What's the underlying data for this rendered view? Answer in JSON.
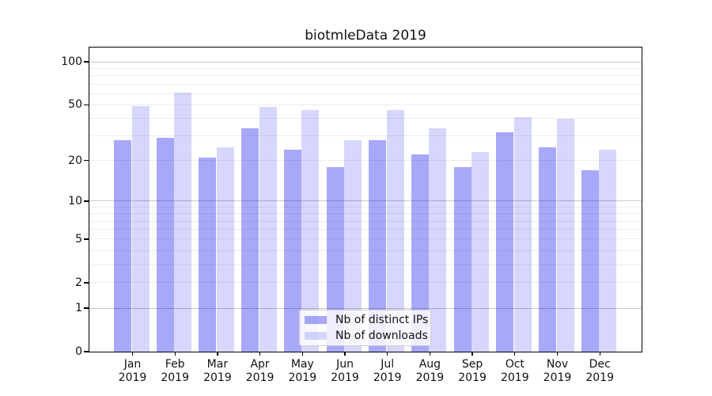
{
  "chart_data": {
    "type": "bar",
    "title": "biotmleData 2019",
    "categories": [
      "Jan 2019",
      "Feb 2019",
      "Mar 2019",
      "Apr 2019",
      "May 2019",
      "Jun 2019",
      "Jul 2019",
      "Aug 2019",
      "Sep 2019",
      "Oct 2019",
      "Nov 2019",
      "Dec 2019"
    ],
    "x_tick_month_labels": [
      "Jan",
      "Feb",
      "Mar",
      "Apr",
      "May",
      "Jun",
      "Jul",
      "Aug",
      "Sep",
      "Oct",
      "Nov",
      "Dec"
    ],
    "x_tick_year_label": "2019",
    "series": [
      {
        "key": "ips",
        "name": "Nb of distinct IPs",
        "color": "rgba(0,0,235,0.34)",
        "values": [
          28,
          29,
          21,
          34,
          24,
          18,
          28,
          22,
          18,
          32,
          25,
          17
        ]
      },
      {
        "key": "downloads",
        "name": "Nb of downloads",
        "color": "rgba(0,0,235,0.155)",
        "values": [
          49,
          61,
          25,
          48,
          46,
          28,
          46,
          34,
          23,
          41,
          40,
          24
        ]
      }
    ],
    "yscale": "log1p",
    "ylim": [
      0,
      126
    ],
    "ytick_values": [
      0,
      1,
      2,
      5,
      10,
      20,
      50,
      100
    ],
    "ytick_labels": [
      "0",
      "1",
      "2",
      "5",
      "10",
      "20",
      "50",
      "100"
    ],
    "major_grid_values": [
      1,
      10,
      100
    ],
    "minor_grid_values": [
      2,
      3,
      4,
      5,
      6,
      7,
      8,
      9,
      20,
      30,
      40,
      50,
      60,
      70,
      80,
      90
    ],
    "grid": "horizontal",
    "legend_position": "lower center"
  },
  "colors": {
    "bar_ips": "rgba(0,0,235,0.34)",
    "bar_downloads": "rgba(0,0,235,0.155)",
    "major_grid": "#c9c9c9",
    "minor_grid": "#ececec",
    "axis": "#000000",
    "text": "#111111",
    "legend_border": "#cccccc"
  }
}
